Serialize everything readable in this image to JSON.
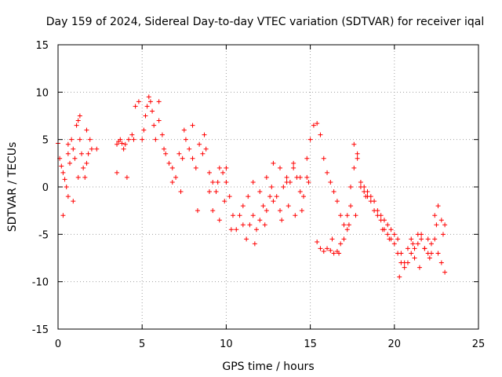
{
  "chart_data": {
    "type": "scatter",
    "title": "Day 159 of 2024, Sidereal Day-to-day VTEC variation (SDTVAR) for receiver iqal",
    "xlabel": "GPS time / hours",
    "ylabel": "SDTVAR / TECUs",
    "xlim": [
      0,
      25
    ],
    "ylim": [
      -15,
      15
    ],
    "x_ticks": [
      0,
      5,
      10,
      15,
      20,
      25
    ],
    "y_ticks": [
      -15,
      -10,
      -5,
      0,
      5,
      10,
      15
    ],
    "x_tick_labels": [
      "0",
      "5",
      "10",
      "15",
      "20",
      "25"
    ],
    "y_tick_labels": [
      "-15",
      "-10",
      "-5",
      "0",
      "5",
      "10",
      "15"
    ],
    "grid": true,
    "marker": "+",
    "series": [
      {
        "name": "SDTVAR",
        "color": "#ff0000",
        "x": [
          0.0,
          0.1,
          0.2,
          0.3,
          0.4,
          0.5,
          0.6,
          0.7,
          0.8,
          0.9,
          1.0,
          1.1,
          1.2,
          1.3,
          1.4,
          1.5,
          1.6,
          1.7,
          1.8,
          1.9,
          2.0,
          2.3,
          3.5,
          3.6,
          3.7,
          3.8,
          3.9,
          4.0,
          4.2,
          4.4,
          4.6,
          4.8,
          5.0,
          5.1,
          5.2,
          5.3,
          5.4,
          5.5,
          5.6,
          5.8,
          6.0,
          6.2,
          6.4,
          6.6,
          6.8,
          7.0,
          7.2,
          7.4,
          7.6,
          7.8,
          8.0,
          8.2,
          8.4,
          8.6,
          8.8,
          9.0,
          9.2,
          9.4,
          9.6,
          9.8,
          10.0,
          10.2,
          10.4,
          10.6,
          10.8,
          11.0,
          11.2,
          11.4,
          11.6,
          11.8,
          12.0,
          12.2,
          12.4,
          12.6,
          12.8,
          13.0,
          13.2,
          13.4,
          13.6,
          13.8,
          14.0,
          14.2,
          14.4,
          14.6,
          14.8,
          15.0,
          15.2,
          15.4,
          15.6,
          15.8,
          16.0,
          16.2,
          16.4,
          16.6,
          16.8,
          17.0,
          17.2,
          17.4,
          17.6,
          17.8,
          18.0,
          18.2,
          18.4,
          18.6,
          18.8,
          19.0,
          19.2,
          19.4,
          19.6,
          19.8,
          20.0,
          20.2,
          20.4,
          20.6,
          20.8,
          21.0,
          21.2,
          21.4,
          21.6,
          21.8,
          22.0,
          22.2,
          22.4,
          22.6,
          22.8,
          23.0,
          15.4,
          15.6,
          15.8,
          16.0,
          16.2,
          16.4,
          16.6,
          16.8,
          17.0,
          17.2,
          17.4,
          17.6,
          17.8,
          18.0,
          18.2,
          18.4,
          18.6,
          18.8,
          19.0,
          19.2,
          19.4,
          19.6,
          19.8,
          20.0,
          20.2,
          20.4,
          20.6,
          20.8,
          21.0,
          21.2,
          21.4,
          21.6,
          21.8,
          22.0,
          22.2,
          22.4,
          22.6,
          22.8,
          23.0,
          11.0,
          11.3,
          11.6,
          12.0,
          12.4,
          12.8,
          13.2,
          13.6,
          14.0,
          14.4,
          14.8,
          9.2,
          9.6,
          10.0,
          3.5,
          1.2,
          0.6,
          8.0,
          7.5,
          6.0,
          0.3,
          0.6,
          0.9,
          1.3,
          1.7,
          4.1,
          4.5,
          5.7,
          6.3,
          6.8,
          7.3,
          8.3,
          8.7,
          9.0,
          9.5,
          9.9,
          10.3,
          11.7,
          12.3,
          12.7,
          13.3,
          13.7,
          14.1,
          14.5,
          14.9,
          16.3,
          16.7,
          17.3,
          17.7,
          18.3,
          19.3,
          19.7,
          20.3,
          21.1,
          21.5,
          22.1,
          22.5,
          22.9
        ],
        "y": [
          4.6,
          3.0,
          2.2,
          1.5,
          0.8,
          0.0,
          -1.0,
          2.5,
          5.0,
          4.0,
          3.0,
          6.5,
          7.0,
          5.0,
          3.5,
          2.0,
          1.0,
          2.5,
          3.5,
          5.0,
          4.0,
          4.0,
          4.5,
          4.8,
          5.0,
          4.6,
          4.0,
          4.5,
          5.0,
          5.5,
          8.5,
          9.0,
          5.0,
          6.0,
          7.5,
          8.5,
          9.5,
          9.0,
          8.0,
          5.0,
          7.0,
          5.5,
          3.5,
          2.5,
          2.0,
          1.0,
          3.5,
          3.0,
          5.0,
          4.0,
          3.0,
          2.0,
          4.5,
          3.5,
          4.0,
          1.5,
          0.5,
          -0.5,
          2.0,
          1.5,
          2.0,
          -1.0,
          -3.0,
          -4.5,
          -3.0,
          -4.0,
          -5.5,
          -4.0,
          -3.0,
          -4.5,
          -3.5,
          -2.0,
          -2.5,
          -1.0,
          -1.5,
          -1.0,
          -2.5,
          0.0,
          1.0,
          0.5,
          2.0,
          1.0,
          -0.5,
          -1.0,
          1.0,
          5.0,
          6.5,
          6.7,
          5.5,
          3.0,
          1.5,
          0.5,
          -0.5,
          -1.5,
          -3.0,
          -4.0,
          -3.0,
          -2.0,
          4.5,
          3.5,
          0.5,
          0.0,
          -0.5,
          -1.0,
          -1.5,
          -2.5,
          -3.0,
          -3.5,
          -4.0,
          -4.5,
          -5.0,
          -5.5,
          -7.0,
          -8.0,
          -6.5,
          -5.5,
          -7.5,
          -6.0,
          -5.0,
          -6.5,
          -5.5,
          -7.0,
          -3.0,
          -2.0,
          -3.5,
          -4.0,
          -5.8,
          -6.5,
          -6.8,
          -6.5,
          -6.7,
          -7.0,
          -6.8,
          -6.0,
          -5.5,
          -4.5,
          0.0,
          2.0,
          3.0,
          0.0,
          -0.5,
          -1.0,
          -1.5,
          -2.5,
          -3.0,
          -3.5,
          -4.5,
          -5.0,
          -5.5,
          -6.0,
          -7.0,
          -8.0,
          -8.5,
          -8.0,
          -7.0,
          -6.5,
          -5.0,
          -5.5,
          -6.5,
          -7.0,
          -6.0,
          -5.5,
          -7.0,
          -8.0,
          -9.0,
          -2.0,
          -1.0,
          0.5,
          -0.5,
          1.0,
          2.5,
          2.0,
          0.5,
          2.5,
          1.0,
          3.0,
          -2.5,
          -3.5,
          0.5,
          1.5,
          1.0,
          3.5,
          6.5,
          6.0,
          9.0,
          -3.0,
          4.5,
          -1.5,
          7.5,
          6.0,
          1.0,
          5.0,
          6.5,
          4.0,
          0.5,
          -0.5,
          -2.5,
          5.5,
          -0.5,
          0.5,
          -1.5,
          -4.5,
          -6.0,
          -4.0,
          0.0,
          -3.5,
          -2.0,
          -3.0,
          -2.5,
          0.5,
          -5.5,
          -7.0,
          -4.0,
          -3.0,
          -1.0,
          -4.5,
          -5.5,
          -9.5,
          -6.0,
          -8.5,
          -7.5,
          -4.0,
          -5.0
        ]
      }
    ]
  }
}
